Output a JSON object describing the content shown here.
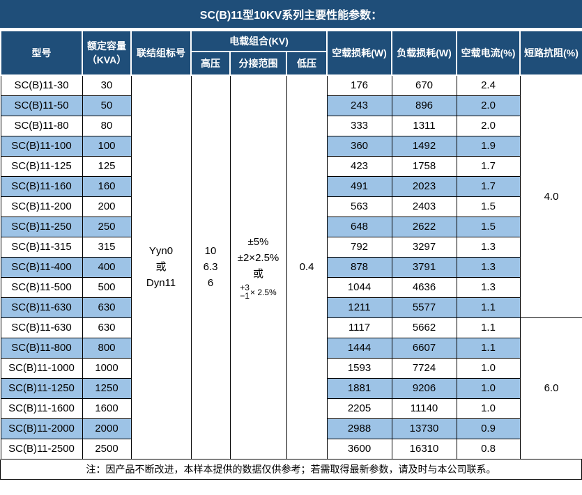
{
  "title": "SC(B)11型10KV系列主要性能参数：",
  "colors": {
    "header_bg": "#1F4E79",
    "stripe_bg": "#9DC3E6",
    "header_text": "#FFFFFF",
    "body_text": "#000000",
    "grid_line": "#000000"
  },
  "table": {
    "headers": {
      "model": "型号",
      "capacity_line1": "额定容量",
      "capacity_line2": "（KVA）",
      "vector_group": "联结组标号",
      "voltage_combination": "电载组合(KV)",
      "hv": "高压",
      "tap_range": "分接范围",
      "lv": "低压",
      "no_load_loss": "空载损耗(W)",
      "load_loss": "负载损耗(W)",
      "no_load_current": "空载电流(%)",
      "impedance": "短路抗阻(%)"
    },
    "merged": {
      "vector_group_lines": [
        "Yyn0",
        "或",
        "Dyn11"
      ],
      "hv_lines": [
        "10",
        "6.3",
        "6"
      ],
      "tap_range_lines": [
        "±5%",
        "±2×2.5%",
        "或"
      ],
      "tap_range_frac": {
        "top": "+3",
        "bottom": "−1",
        "suffix": "× 2.5%"
      },
      "lv": "0.4"
    },
    "impedance_groups": [
      {
        "value": "4.0",
        "row_start": 0,
        "row_count": 12
      },
      {
        "value": "6.0",
        "row_start": 12,
        "row_count": 7
      }
    ],
    "rows": [
      {
        "model": "SC(B)11-30",
        "capacity": "30",
        "no_load_loss": "176",
        "load_loss": "670",
        "no_load_current": "2.4"
      },
      {
        "model": "SC(B)11-50",
        "capacity": "50",
        "no_load_loss": "243",
        "load_loss": "896",
        "no_load_current": "2.0"
      },
      {
        "model": "SC(B)11-80",
        "capacity": "80",
        "no_load_loss": "333",
        "load_loss": "1311",
        "no_load_current": "2.0"
      },
      {
        "model": "SC(B)11-100",
        "capacity": "100",
        "no_load_loss": "360",
        "load_loss": "1492",
        "no_load_current": "1.9"
      },
      {
        "model": "SC(B)11-125",
        "capacity": "125",
        "no_load_loss": "423",
        "load_loss": "1758",
        "no_load_current": "1.7"
      },
      {
        "model": "SC(B)11-160",
        "capacity": "160",
        "no_load_loss": "491",
        "load_loss": "2023",
        "no_load_current": "1.7"
      },
      {
        "model": "SC(B)11-200",
        "capacity": "200",
        "no_load_loss": "563",
        "load_loss": "2403",
        "no_load_current": "1.5"
      },
      {
        "model": "SC(B)11-250",
        "capacity": "250",
        "no_load_loss": "648",
        "load_loss": "2622",
        "no_load_current": "1.5"
      },
      {
        "model": "SC(B)11-315",
        "capacity": "315",
        "no_load_loss": "792",
        "load_loss": "3297",
        "no_load_current": "1.3"
      },
      {
        "model": "SC(B)11-400",
        "capacity": "400",
        "no_load_loss": "878",
        "load_loss": "3791",
        "no_load_current": "1.3"
      },
      {
        "model": "SC(B)11-500",
        "capacity": "500",
        "no_load_loss": "1044",
        "load_loss": "4636",
        "no_load_current": "1.3"
      },
      {
        "model": "SC(B)11-630",
        "capacity": "630",
        "no_load_loss": "1211",
        "load_loss": "5577",
        "no_load_current": "1.1"
      },
      {
        "model": "SC(B)11-630",
        "capacity": "630",
        "no_load_loss": "1117",
        "load_loss": "5662",
        "no_load_current": "1.1"
      },
      {
        "model": "SC(B)11-800",
        "capacity": "800",
        "no_load_loss": "1444",
        "load_loss": "6607",
        "no_load_current": "1.1"
      },
      {
        "model": "SC(B)11-1000",
        "capacity": "1000",
        "no_load_loss": "1593",
        "load_loss": "7724",
        "no_load_current": "1.0"
      },
      {
        "model": "SC(B)11-1250",
        "capacity": "1250",
        "no_load_loss": "1881",
        "load_loss": "9206",
        "no_load_current": "1.0"
      },
      {
        "model": "SC(B)11-1600",
        "capacity": "1600",
        "no_load_loss": "2205",
        "load_loss": "11140",
        "no_load_current": "1.0"
      },
      {
        "model": "SC(B)11-2000",
        "capacity": "2000",
        "no_load_loss": "2988",
        "load_loss": "13730",
        "no_load_current": "0.9"
      },
      {
        "model": "SC(B)11-2500",
        "capacity": "2500",
        "no_load_loss": "3600",
        "load_loss": "16310",
        "no_load_current": "0.8"
      }
    ]
  },
  "footnote": "注：因产品不断改进，本样本提供的数据仅供参考；若需取得最新参数，请及时与本公司联系。"
}
